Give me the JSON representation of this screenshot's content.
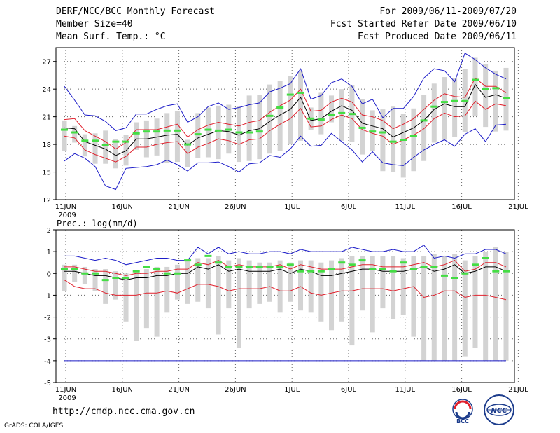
{
  "header": {
    "title": "DERF/NCC/BCC Monthly Forecast",
    "member_size": "Member Size=40",
    "variable": "Mean Surf. Temp.: °C",
    "period": "For 2009/06/11-2009/07/20",
    "started": "Fcst Started Refer Date 2009/06/10",
    "produced": "Fcst Produced Date 2009/06/11"
  },
  "footer": {
    "url": "http://cmdp.ncc.cma.gov.cn",
    "grads": "GrADS: COLA/IGES",
    "logo_left": "BCC",
    "logo_right": "NCC"
  },
  "colors": {
    "ensemble_mean": "#000000",
    "spread": "#e0202c",
    "envelope": "#1c1cc8",
    "observed": "#44dd44",
    "box": "#d3d3d3",
    "grid": "#666666"
  },
  "chart_data": [
    {
      "type": "line",
      "title": "Mean Surf. Temp.: °C",
      "x_labels": [
        "11JUN",
        "16JUN",
        "21JUN",
        "26JUN",
        "1JUL",
        "6JUL",
        "11JUL",
        "16JUL",
        "21JUL"
      ],
      "year_label": "2009",
      "ylim": [
        12,
        28.5
      ],
      "yticks": [
        12,
        15,
        18,
        21,
        24,
        27
      ],
      "series": [
        {
          "name": "max",
          "values": [
            24.3,
            22.8,
            21.2,
            21.1,
            20.5,
            19.5,
            19.8,
            21.3,
            21.3,
            21.8,
            22.2,
            22.4,
            20.4,
            21.0,
            22.1,
            22.5,
            21.8,
            22.0,
            22.3,
            22.5,
            23.7,
            24.1,
            24.6,
            26.2,
            22.9,
            23.3,
            24.7,
            25.1,
            24.3,
            22.4,
            22.9,
            20.9,
            21.9,
            21.9,
            23.2,
            25.2,
            26.2,
            26.0,
            24.8,
            27.9,
            27.2,
            26.3,
            25.6,
            25.1
          ]
        },
        {
          "name": "upper",
          "values": [
            20.7,
            20.8,
            19.5,
            18.9,
            18.3,
            17.5,
            18.2,
            19.6,
            19.6,
            19.6,
            19.9,
            20.2,
            18.8,
            19.6,
            20.1,
            20.4,
            20.2,
            20.0,
            20.4,
            20.6,
            21.5,
            22.2,
            22.8,
            24.0,
            21.6,
            21.7,
            22.6,
            23.0,
            22.6,
            21.2,
            21.0,
            20.6,
            19.7,
            20.2,
            20.8,
            21.8,
            22.8,
            23.5,
            23.2,
            23.1,
            25.2,
            24.3,
            24.3,
            23.6
          ]
        },
        {
          "name": "mean",
          "values": [
            19.8,
            19.7,
            18.3,
            17.9,
            17.5,
            16.8,
            17.3,
            18.6,
            18.6,
            18.8,
            19.0,
            19.1,
            17.9,
            18.7,
            19.1,
            19.5,
            19.4,
            19.0,
            19.5,
            19.7,
            20.5,
            21.2,
            21.8,
            23.1,
            20.6,
            20.8,
            21.6,
            22.2,
            21.7,
            20.3,
            20.0,
            19.7,
            18.8,
            19.3,
            19.8,
            20.6,
            21.8,
            22.4,
            22.1,
            22.1,
            24.5,
            23.1,
            23.4,
            23.0
          ]
        },
        {
          "name": "lower",
          "values": [
            18.9,
            18.7,
            17.4,
            16.9,
            16.5,
            16.1,
            16.7,
            17.7,
            17.7,
            18.0,
            18.2,
            18.3,
            17.0,
            17.7,
            18.1,
            18.6,
            18.4,
            18.0,
            18.5,
            18.6,
            19.5,
            20.2,
            20.8,
            21.9,
            19.9,
            20.0,
            20.7,
            21.2,
            20.8,
            19.6,
            19.2,
            18.9,
            18.0,
            18.5,
            19.0,
            19.7,
            20.8,
            21.4,
            21.0,
            21.1,
            22.7,
            21.8,
            22.4,
            22.2
          ]
        },
        {
          "name": "min",
          "values": [
            16.2,
            17.0,
            16.5,
            15.6,
            13.5,
            13.1,
            15.4,
            15.5,
            15.6,
            15.8,
            16.3,
            15.8,
            15.1,
            16.0,
            16.0,
            16.1,
            15.6,
            15.0,
            15.9,
            16.0,
            16.8,
            16.6,
            17.5,
            18.9,
            17.8,
            17.9,
            19.2,
            18.3,
            17.4,
            16.1,
            17.2,
            16.0,
            15.8,
            15.7,
            16.6,
            17.4,
            18.0,
            18.5,
            17.8,
            19.1,
            19.7,
            18.3,
            20.1,
            20.2
          ]
        }
      ],
      "boxes": [
        [
          17.3,
          20.6
        ],
        [
          18.2,
          20.0
        ],
        [
          16.7,
          19.1
        ],
        [
          15.9,
          19.2
        ],
        [
          15.9,
          19.5
        ],
        [
          15.4,
          18.6
        ],
        [
          15.7,
          19.0
        ],
        [
          17.4,
          20.4
        ],
        [
          16.6,
          20.6
        ],
        [
          16.8,
          20.8
        ],
        [
          16.0,
          21.4
        ],
        [
          16.1,
          21.6
        ],
        [
          15.5,
          18.5
        ],
        [
          16.5,
          21.4
        ],
        [
          16.6,
          22.0
        ],
        [
          16.4,
          22.2
        ],
        [
          17.0,
          22.3
        ],
        [
          16.1,
          22.1
        ],
        [
          16.2,
          23.3
        ],
        [
          16.4,
          23.4
        ],
        [
          17.0,
          24.5
        ],
        [
          17.3,
          24.9
        ],
        [
          18.0,
          25.4
        ],
        [
          18.4,
          25.9
        ],
        [
          19.6,
          22.0
        ],
        [
          19.1,
          23.6
        ],
        [
          20.4,
          23.3
        ],
        [
          18.4,
          24.0
        ],
        [
          18.3,
          24.4
        ],
        [
          16.9,
          22.9
        ],
        [
          17.3,
          21.7
        ],
        [
          15.1,
          21.8
        ],
        [
          15.0,
          22.1
        ],
        [
          14.4,
          21.3
        ],
        [
          15.1,
          21.9
        ],
        [
          16.2,
          23.4
        ],
        [
          18.2,
          24.6
        ],
        [
          18.5,
          25.3
        ],
        [
          18.8,
          25.2
        ],
        [
          19.3,
          26.2
        ],
        [
          21.1,
          27.4
        ],
        [
          19.9,
          26.7
        ],
        [
          19.4,
          26.0
        ],
        [
          19.5,
          26.3
        ]
      ],
      "observed": [
        19.6,
        19.3,
        18.4,
        18.4,
        17.9,
        18.3,
        18.3,
        19.2,
        19.4,
        19.4,
        19.5,
        19.5,
        18.0,
        19.1,
        19.6,
        19.5,
        19.6,
        19.3,
        19.3,
        19.4,
        21.1,
        22.0,
        23.4,
        23.6,
        20.8,
        20.7,
        21.2,
        21.4,
        21.3,
        19.8,
        19.4,
        19.3,
        18.3,
        18.5,
        18.9,
        20.6,
        22.1,
        22.6,
        22.7,
        22.7,
        25.0,
        24.0,
        24.1,
        23.0
      ]
    },
    {
      "type": "line",
      "title": "Prec.: log(mm/d)",
      "x_labels": [
        "11JUN",
        "16JUN",
        "21JUN",
        "26JUN",
        "1JUL",
        "6JUL",
        "11JUL",
        "16JUL",
        "21JUL"
      ],
      "year_label": "2009",
      "ylim": [
        -5,
        2
      ],
      "yticks": [
        -5,
        -4,
        -3,
        -2,
        -1,
        0,
        1,
        2
      ],
      "series": [
        {
          "name": "max",
          "values": [
            0.8,
            0.8,
            0.7,
            0.6,
            0.7,
            0.6,
            0.4,
            0.5,
            0.6,
            0.7,
            0.7,
            0.6,
            0.6,
            1.2,
            0.9,
            1.2,
            0.9,
            1.0,
            0.9,
            0.9,
            1.0,
            1.0,
            0.9,
            1.1,
            1.0,
            1.0,
            1.0,
            1.0,
            1.2,
            1.1,
            1.0,
            1.0,
            1.1,
            1.0,
            1.0,
            1.3,
            0.7,
            0.8,
            0.7,
            0.9,
            0.9,
            1.1,
            1.1,
            0.9
          ]
        },
        {
          "name": "upper",
          "values": [
            0.3,
            0.3,
            0.2,
            0.1,
            0.1,
            0.0,
            -0.1,
            0.0,
            0.0,
            0.1,
            0.1,
            0.2,
            0.2,
            0.5,
            0.4,
            0.6,
            0.3,
            0.4,
            0.3,
            0.3,
            0.3,
            0.4,
            0.2,
            0.4,
            0.3,
            0.2,
            0.2,
            0.2,
            0.3,
            0.4,
            0.4,
            0.3,
            0.3,
            0.3,
            0.4,
            0.5,
            0.3,
            0.4,
            0.6,
            0.1,
            0.2,
            0.5,
            0.5,
            0.3
          ]
        },
        {
          "name": "mean",
          "values": [
            0.1,
            0.1,
            0.0,
            -0.1,
            -0.1,
            -0.2,
            -0.3,
            -0.2,
            -0.2,
            -0.1,
            -0.1,
            0.0,
            0.0,
            0.3,
            0.2,
            0.4,
            0.1,
            0.2,
            0.1,
            0.1,
            0.1,
            0.2,
            0.0,
            0.2,
            0.1,
            -0.1,
            -0.1,
            0.0,
            0.1,
            0.2,
            0.2,
            0.1,
            0.1,
            0.1,
            0.2,
            0.3,
            0.1,
            0.2,
            0.4,
            0.0,
            0.1,
            0.3,
            0.3,
            0.1
          ]
        },
        {
          "name": "lower",
          "values": [
            -0.3,
            -0.6,
            -0.7,
            -0.7,
            -0.9,
            -1.0,
            -1.0,
            -1.0,
            -0.9,
            -0.9,
            -0.8,
            -0.9,
            -0.7,
            -0.5,
            -0.5,
            -0.6,
            -0.8,
            -0.7,
            -0.7,
            -0.7,
            -0.6,
            -0.8,
            -0.8,
            -0.6,
            -0.9,
            -1.0,
            -0.9,
            -0.8,
            -0.8,
            -0.7,
            -0.7,
            -0.7,
            -0.8,
            -0.7,
            -0.6,
            -1.1,
            -1.0,
            -0.8,
            -0.8,
            -1.1,
            -1.0,
            -1.0,
            -1.1,
            -1.2
          ]
        },
        {
          "name": "min",
          "values": [
            -4.0,
            -4.0,
            -4.0,
            -4.0,
            -4.0,
            -4.0,
            -4.0,
            -4.0,
            -4.0,
            -4.0,
            -4.0,
            -4.0,
            -4.0,
            -4.0,
            -4.0,
            -4.0,
            -4.0,
            -4.0,
            -4.0,
            -4.0,
            -4.0,
            -4.0,
            -4.0,
            -4.0,
            -4.0,
            -4.0,
            -4.0,
            -4.0,
            -4.0,
            -4.0,
            -4.0,
            -4.0,
            -4.0,
            -4.0,
            -4.0,
            -4.0,
            -4.0,
            -4.0,
            -4.0,
            -4.0,
            -4.0,
            -4.0,
            -4.0,
            -4.0
          ]
        }
      ],
      "boxes": [
        [
          -0.8,
          0.4
        ],
        [
          -0.4,
          0.4
        ],
        [
          -0.5,
          0.3
        ],
        [
          -0.8,
          0.2
        ],
        [
          -1.4,
          0.2
        ],
        [
          -1.2,
          0.1
        ],
        [
          -2.2,
          0.0
        ],
        [
          -3.1,
          0.1
        ],
        [
          -2.5,
          0.2
        ],
        [
          -2.9,
          0.3
        ],
        [
          -1.8,
          0.3
        ],
        [
          -1.2,
          0.4
        ],
        [
          -1.4,
          0.6
        ],
        [
          -1.3,
          0.7
        ],
        [
          -1.6,
          0.7
        ],
        [
          -2.8,
          0.8
        ],
        [
          -1.6,
          0.6
        ],
        [
          -3.4,
          0.7
        ],
        [
          -1.6,
          0.6
        ],
        [
          -1.4,
          0.5
        ],
        [
          -1.3,
          0.5
        ],
        [
          -1.8,
          0.6
        ],
        [
          -1.3,
          0.5
        ],
        [
          -1.7,
          0.6
        ],
        [
          -1.8,
          0.6
        ],
        [
          -2.2,
          0.5
        ],
        [
          -2.6,
          0.6
        ],
        [
          -2.2,
          0.7
        ],
        [
          -3.3,
          0.8
        ],
        [
          -1.7,
          0.8
        ],
        [
          -2.7,
          0.8
        ],
        [
          -1.6,
          0.8
        ],
        [
          -2.1,
          0.8
        ],
        [
          -1.9,
          0.7
        ],
        [
          -2.9,
          0.8
        ],
        [
          -4.0,
          0.8
        ],
        [
          -4.0,
          0.9
        ],
        [
          -4.0,
          0.8
        ],
        [
          -4.0,
          0.9
        ],
        [
          -3.8,
          0.6
        ],
        [
          -3.4,
          0.8
        ],
        [
          -4.0,
          1.0
        ],
        [
          -4.0,
          1.2
        ],
        [
          -4.0,
          1.0
        ]
      ],
      "observed": [
        0.2,
        0.2,
        0.0,
        0.0,
        -0.3,
        -0.2,
        -0.2,
        0.1,
        0.3,
        0.2,
        0.0,
        0.0,
        0.6,
        0.4,
        0.8,
        0.5,
        0.3,
        0.3,
        0.3,
        0.3,
        0.3,
        0.3,
        0.4,
        0.1,
        0.1,
        0.1,
        0.2,
        0.5,
        0.4,
        0.6,
        0.2,
        0.2,
        0.1,
        0.5,
        0.2,
        0.3,
        0.3,
        -0.1,
        -0.2,
        0.0,
        0.4,
        0.7,
        0.1,
        0.1
      ]
    }
  ]
}
